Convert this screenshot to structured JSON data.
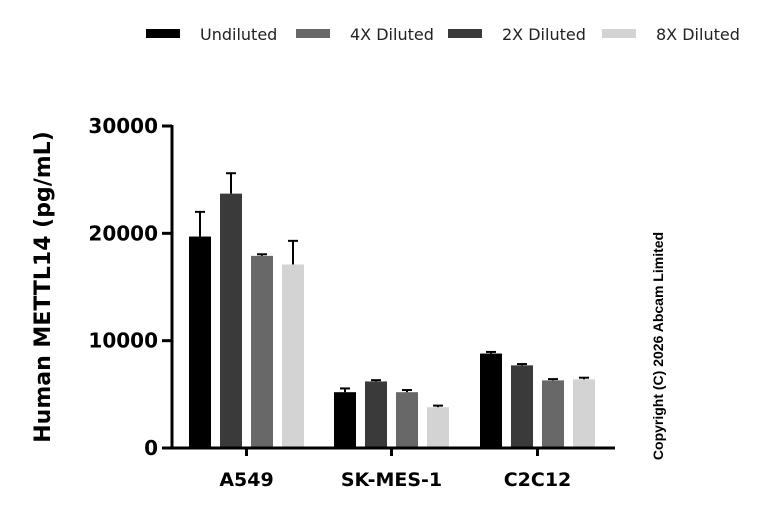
{
  "chart_data": {
    "type": "bar",
    "categories": [
      "A549",
      "SK-MES-1",
      "C2C12"
    ],
    "series": [
      {
        "name": "Undiluted",
        "color": "#000000",
        "values": [
          19700,
          5200,
          8800
        ],
        "errors": [
          2300,
          350,
          150
        ]
      },
      {
        "name": "2X Diluted",
        "color": "#3a3a3a",
        "values": [
          23700,
          6200,
          7700
        ],
        "errors": [
          1900,
          120,
          120
        ]
      },
      {
        "name": "4X Diluted",
        "color": "#686868",
        "values": [
          17900,
          5200,
          6300
        ],
        "errors": [
          150,
          200,
          120
        ]
      },
      {
        "name": "8X Diluted",
        "color": "#d3d3d3",
        "values": [
          17100,
          3800,
          6400
        ],
        "errors": [
          2200,
          150,
          150
        ]
      }
    ],
    "legend_order": [
      "Undiluted",
      "4X Diluted",
      "2X Diluted",
      "8X Diluted"
    ],
    "ylabel": "Human METTL14 (pg/mL)",
    "xlabel": "",
    "ylim": [
      0,
      30000
    ],
    "yticks": [
      0,
      10000,
      20000,
      30000
    ],
    "ytick_labels": [
      "0",
      "10000",
      "20000",
      "30000"
    ],
    "legend_position": "top",
    "grid": false
  },
  "copyright": "Copyright (C) 2026 Abcam Limited"
}
